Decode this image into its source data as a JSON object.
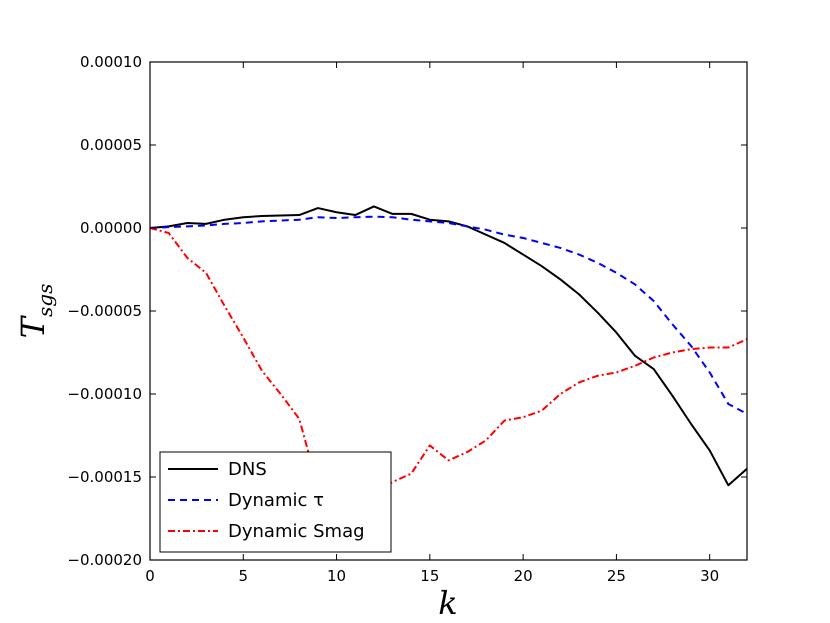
{
  "chart_data": {
    "type": "line",
    "xlabel": "k",
    "ylabel_main": "T",
    "ylabel_sub": "sgs",
    "xlim": [
      0,
      32
    ],
    "ylim": [
      -0.0002,
      0.0001
    ],
    "xticks": [
      0,
      5,
      10,
      15,
      20,
      25,
      30
    ],
    "xtick_labels": [
      "0",
      "5",
      "10",
      "15",
      "20",
      "25",
      "30"
    ],
    "yticks": [
      0.0001,
      5e-05,
      0.0,
      -5e-05,
      -0.0001,
      -0.00015,
      -0.0002
    ],
    "ytick_labels": [
      "0.00010",
      "0.00005",
      "0.00000",
      "−0.00005",
      "−0.00010",
      "−0.00015",
      "−0.00020"
    ],
    "grid": false,
    "legend_position": "lower-left",
    "series": [
      {
        "name": "DNS",
        "color": "#000000",
        "style": "solid",
        "x": [
          0,
          1,
          2,
          3,
          4,
          5,
          6,
          7,
          8,
          9,
          10,
          11,
          12,
          13,
          14,
          15,
          16,
          17,
          18,
          19,
          20,
          21,
          22,
          23,
          24,
          25,
          26,
          27,
          28,
          29,
          30,
          31,
          32
        ],
        "y": [
          0.0,
          1e-06,
          3e-06,
          2.5e-06,
          5e-06,
          6.5e-06,
          7.2e-06,
          7.5e-06,
          7.8e-06,
          1.2e-05,
          9.5e-06,
          7.8e-06,
          1.3e-05,
          8.5e-06,
          8.5e-06,
          5e-06,
          4e-06,
          1e-06,
          -4e-06,
          -9e-06,
          -1.6e-05,
          -2.3e-05,
          -3.1e-05,
          -4e-05,
          -5.1e-05,
          -6.3e-05,
          -7.7e-05,
          -8.5e-05,
          -0.000101,
          -0.000118,
          -0.000134,
          -0.000155,
          -0.000145
        ]
      },
      {
        "name": "Dynamic τ",
        "color": "#0000ff",
        "style": "dashed",
        "x": [
          0,
          1,
          2,
          3,
          4,
          5,
          6,
          7,
          8,
          9,
          10,
          11,
          12,
          13,
          14,
          15,
          16,
          17,
          18,
          19,
          20,
          21,
          22,
          23,
          24,
          25,
          26,
          27,
          28,
          29,
          30,
          31,
          32
        ],
        "y": [
          0.0,
          5e-07,
          1e-06,
          1.5e-06,
          2.5e-06,
          3e-06,
          4e-06,
          4.5e-06,
          5e-06,
          6.5e-06,
          6e-06,
          6.5e-06,
          6.8e-06,
          6.5e-06,
          5e-06,
          4e-06,
          3e-06,
          1e-06,
          -1e-06,
          -4e-06,
          -6e-06,
          -9e-06,
          -1.2e-05,
          -1.6e-05,
          -2.1e-05,
          -2.7e-05,
          -3.4e-05,
          -4.4e-05,
          -5.8e-05,
          -7.1e-05,
          -8.7e-05,
          -0.000106,
          -0.000112
        ]
      },
      {
        "name": "Dynamic Smag",
        "color": "#ff0000",
        "style": "dashdot",
        "x": [
          0,
          1,
          2,
          3,
          4,
          5,
          6,
          7,
          8,
          9,
          10,
          11,
          12,
          13,
          14,
          15,
          16,
          17,
          18,
          19,
          20,
          21,
          22,
          23,
          24,
          25,
          26,
          27,
          28,
          29,
          30,
          31,
          32
        ],
        "y": [
          0.0,
          -3e-06,
          -1.8e-05,
          -2.7e-05,
          -4.7e-05,
          -6.6e-05,
          -8.6e-05,
          -0.0001,
          -0.000115,
          -0.000156,
          -0.000158,
          -0.000161,
          -0.00016,
          -0.000153,
          -0.000148,
          -0.000131,
          -0.00014,
          -0.000135,
          -0.000128,
          -0.000116,
          -0.000114,
          -0.00011,
          -0.0001,
          -9.3e-05,
          -8.9e-05,
          -8.7e-05,
          -8.3e-05,
          -7.8e-05,
          -7.5e-05,
          -7.3e-05,
          -7.2e-05,
          -7.2e-05,
          -6.7e-05
        ]
      }
    ]
  }
}
